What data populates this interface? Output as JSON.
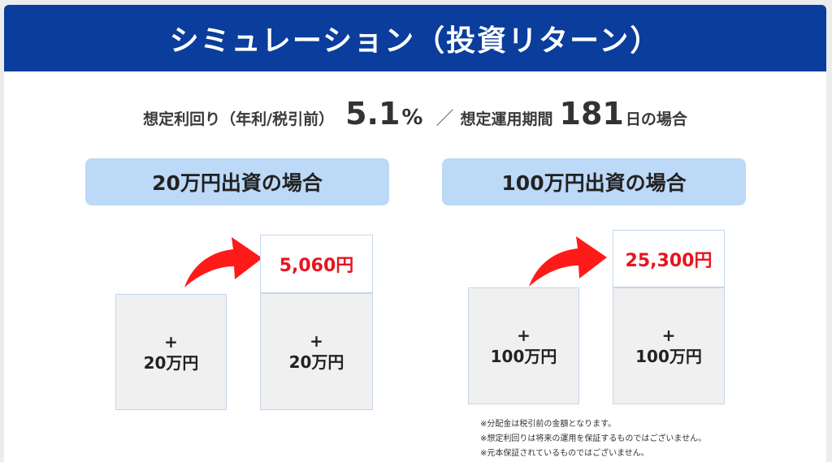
{
  "header": {
    "title": "シミュレーション（投資リターン）"
  },
  "assumption": {
    "rate_label": "想定利回り（年利/税引前）",
    "rate_value": "5.1",
    "rate_unit": "%",
    "separator": "／",
    "period_label": "想定運用期間",
    "period_value": "181",
    "period_suffix": "日の場合"
  },
  "case1": {
    "label": "20万円出資の場合",
    "principal_before": {
      "plus": "+",
      "amount": "20万円"
    },
    "principal_after": {
      "plus": "+",
      "amount": "20万円"
    },
    "return_amount": "5,060円"
  },
  "case2": {
    "label": "100万円出資の場合",
    "principal_before": {
      "plus": "+",
      "amount": "100万円"
    },
    "principal_after": {
      "plus": "+",
      "amount": "100万円"
    },
    "return_amount": "25,300円"
  },
  "notes": [
    "※分配金は税引前の金額となります。",
    "※想定利回りは将来の運用を保証するものではございません。",
    "※元本保証されているものではございません。"
  ],
  "colors": {
    "header_bg": "#0a3d9c",
    "label_bg": "#bcd9f7",
    "return_text": "#e8141e",
    "arrow": "#ff1a1a"
  }
}
